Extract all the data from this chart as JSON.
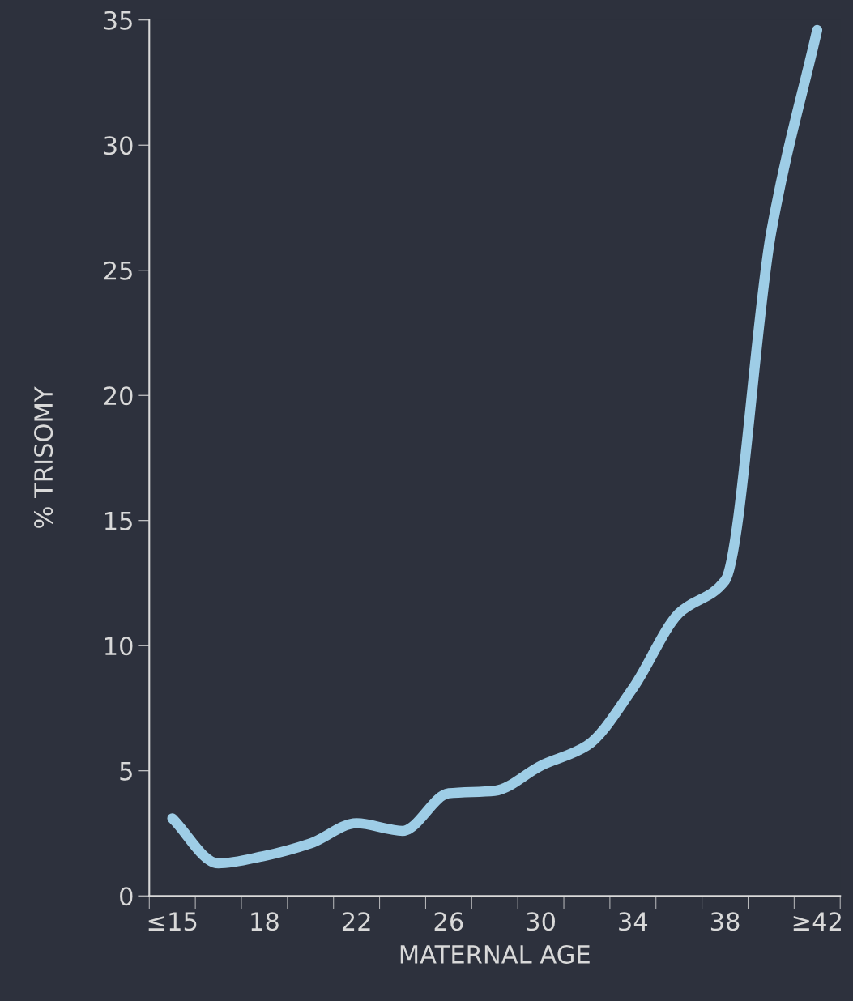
{
  "chart_data": {
    "type": "line",
    "xlabel": "MATERNAL AGE",
    "ylabel": "% TRISOMY",
    "categories": [
      "≤15",
      null,
      "18",
      null,
      "22",
      null,
      "26",
      null,
      "30",
      null,
      "34",
      null,
      "38",
      null,
      "≥42"
    ],
    "series": [
      {
        "color": "#9ecde6",
        "values": [
          3.1,
          1.3,
          1.6,
          2.1,
          2.9,
          2.6,
          4.1,
          4.2,
          5.2,
          6.0,
          8.3,
          11.3,
          12.6,
          26.5,
          34.6
        ]
      }
    ],
    "ylim": [
      0,
      35
    ],
    "yticks": [
      0,
      5,
      10,
      15,
      20,
      25,
      30,
      35
    ],
    "grid": false,
    "legend": false,
    "marker": "none",
    "line_style": "solid"
  }
}
